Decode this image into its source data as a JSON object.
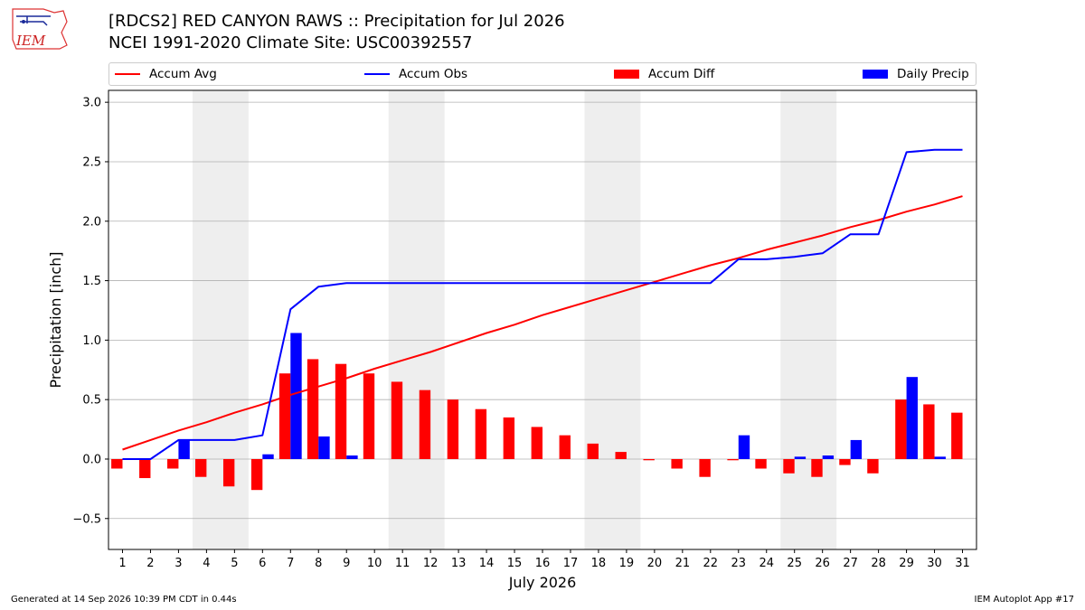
{
  "header": {
    "logo_text": "IEM",
    "title_line1": "[RDCS2] RED CANYON RAWS :: Precipitation for Jul 2026",
    "title_line2": "NCEI 1991-2020 Climate Site: USC00392557"
  },
  "legend": {
    "accum_avg": "Accum Avg",
    "accum_obs": "Accum Obs",
    "accum_diff": "Accum Diff",
    "daily_precip": "Daily Precip"
  },
  "colors": {
    "avg": "#ff0000",
    "obs": "#0000ff",
    "diff": "#ff0000",
    "daily": "#0000ff",
    "shade": "#eeeeee",
    "grid": "#b0b0b0"
  },
  "footer": {
    "left": "Generated at 14 Sep 2026 10:39 PM CDT in 0.44s",
    "right": "IEM Autoplot App #17"
  },
  "chart_data": {
    "type": "bar",
    "xlabel": "July 2026",
    "ylabel": "Precipitation [inch]",
    "ylim": [
      -0.76,
      3.1
    ],
    "yticks": [
      -0.5,
      0.0,
      0.5,
      1.0,
      1.5,
      2.0,
      2.5,
      3.0
    ],
    "ytick_labels": [
      "−0.5",
      "0.0",
      "0.5",
      "1.0",
      "1.5",
      "2.0",
      "2.5",
      "3.0"
    ],
    "grid": "horizontal",
    "x": [
      1,
      2,
      3,
      4,
      5,
      6,
      7,
      8,
      9,
      10,
      11,
      12,
      13,
      14,
      15,
      16,
      17,
      18,
      19,
      20,
      21,
      22,
      23,
      24,
      25,
      26,
      27,
      28,
      29,
      30,
      31
    ],
    "weekend_shading": [
      [
        4,
        5
      ],
      [
        11,
        12
      ],
      [
        18,
        19
      ],
      [
        25,
        26
      ]
    ],
    "series": [
      {
        "name": "Accum Avg",
        "type": "line",
        "values": [
          0.08,
          0.16,
          0.24,
          0.31,
          0.39,
          0.46,
          0.54,
          0.61,
          0.68,
          0.76,
          0.83,
          0.9,
          0.98,
          1.06,
          1.13,
          1.21,
          1.28,
          1.35,
          1.42,
          1.49,
          1.56,
          1.63,
          1.69,
          1.76,
          1.82,
          1.88,
          1.95,
          2.01,
          2.08,
          2.14,
          2.21
        ]
      },
      {
        "name": "Accum Obs",
        "type": "line",
        "values": [
          0.0,
          0.0,
          0.16,
          0.16,
          0.16,
          0.2,
          1.26,
          1.45,
          1.48,
          1.48,
          1.48,
          1.48,
          1.48,
          1.48,
          1.48,
          1.48,
          1.48,
          1.48,
          1.48,
          1.48,
          1.48,
          1.48,
          1.68,
          1.68,
          1.7,
          1.73,
          1.89,
          1.89,
          2.58,
          2.6,
          2.6
        ]
      },
      {
        "name": "Accum Diff",
        "type": "bar",
        "values": [
          -0.08,
          -0.16,
          -0.08,
          -0.15,
          -0.23,
          -0.26,
          0.72,
          0.84,
          0.8,
          0.72,
          0.65,
          0.58,
          0.5,
          0.42,
          0.35,
          0.27,
          0.2,
          0.13,
          0.06,
          -0.01,
          -0.08,
          -0.15,
          -0.01,
          -0.08,
          -0.12,
          -0.15,
          -0.05,
          -0.12,
          0.5,
          0.46,
          0.39
        ]
      },
      {
        "name": "Daily Precip",
        "type": "bar",
        "values": [
          0,
          0,
          0.16,
          0,
          0,
          0.04,
          1.06,
          0.19,
          0.03,
          0,
          0,
          0,
          0,
          0,
          0,
          0,
          0,
          0,
          0,
          0,
          0,
          0,
          0.2,
          0,
          0.02,
          0.03,
          0.16,
          0,
          0.69,
          0.02,
          0
        ]
      }
    ]
  }
}
